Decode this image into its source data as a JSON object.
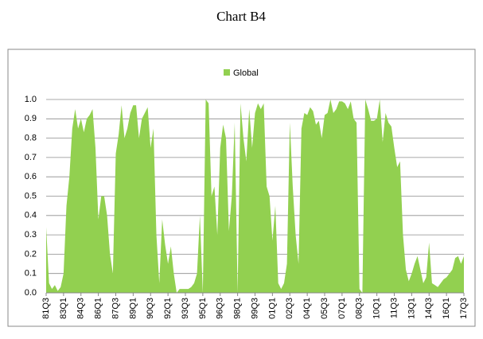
{
  "chart_data": {
    "type": "area",
    "title": "Chart B4",
    "categories": [
      "81Q3",
      null,
      null,
      null,
      null,
      null,
      "83Q1",
      null,
      null,
      null,
      null,
      null,
      "84Q3",
      null,
      null,
      null,
      null,
      null,
      "86Q1",
      null,
      null,
      null,
      null,
      null,
      "87Q3",
      null,
      null,
      null,
      null,
      null,
      "89Q1",
      null,
      null,
      null,
      null,
      null,
      "90Q3",
      null,
      null,
      null,
      null,
      null,
      "92Q1",
      null,
      null,
      null,
      null,
      null,
      "93Q3",
      null,
      null,
      null,
      null,
      null,
      "95Q1",
      null,
      null,
      null,
      null,
      null,
      "96Q3",
      null,
      null,
      null,
      null,
      null,
      "98Q1",
      null,
      null,
      null,
      null,
      null,
      "99Q3",
      null,
      null,
      null,
      null,
      null,
      "01Q1",
      null,
      null,
      null,
      null,
      null,
      "02Q3",
      null,
      null,
      null,
      null,
      null,
      "04Q1",
      null,
      null,
      null,
      null,
      null,
      "05Q3",
      null,
      null,
      null,
      null,
      null,
      "07Q1",
      null,
      null,
      null,
      null,
      null,
      "08Q3",
      null,
      null,
      null,
      null,
      null,
      "10Q1",
      null,
      null,
      null,
      null,
      null,
      "11Q3",
      null,
      null,
      null,
      null,
      null,
      "13Q1",
      null,
      null,
      null,
      null,
      null,
      "14Q3",
      null,
      null,
      null,
      null,
      null,
      "16Q1",
      null,
      null,
      null,
      null,
      null,
      "17Q3"
    ],
    "series": [
      {
        "name": "Global",
        "color": "#92d050",
        "values": [
          0.34,
          0.05,
          0.02,
          0.04,
          0.01,
          0.03,
          0.1,
          0.45,
          0.6,
          0.85,
          0.95,
          0.85,
          0.9,
          0.83,
          0.9,
          0.92,
          0.95,
          0.75,
          0.38,
          0.5,
          0.5,
          0.4,
          0.2,
          0.1,
          0.72,
          0.82,
          0.97,
          0.8,
          0.85,
          0.93,
          0.97,
          0.97,
          0.8,
          0.9,
          0.93,
          0.96,
          0.75,
          0.85,
          0.3,
          0.05,
          0.38,
          0.25,
          0.15,
          0.24,
          0.1,
          0.0,
          0.02,
          0.02,
          0.02,
          0.02,
          0.03,
          0.05,
          0.1,
          0.4,
          0.0,
          1.0,
          0.98,
          0.5,
          0.55,
          0.3,
          0.75,
          0.87,
          0.8,
          0.32,
          0.5,
          0.88,
          0.0,
          0.98,
          0.8,
          0.68,
          0.95,
          0.75,
          0.93,
          0.98,
          0.95,
          0.98,
          0.55,
          0.5,
          0.27,
          0.45,
          0.05,
          0.02,
          0.05,
          0.15,
          0.88,
          0.55,
          0.3,
          0.15,
          0.85,
          0.93,
          0.92,
          0.96,
          0.94,
          0.87,
          0.89,
          0.8,
          0.92,
          0.93,
          1.0,
          0.93,
          0.95,
          0.99,
          0.99,
          0.98,
          0.95,
          0.99,
          0.9,
          0.88,
          0.02,
          0.0,
          1.0,
          0.95,
          0.89,
          0.89,
          0.9,
          1.0,
          0.78,
          0.93,
          0.88,
          0.86,
          0.75,
          0.65,
          0.68,
          0.3,
          0.12,
          0.06,
          0.1,
          0.15,
          0.19,
          0.12,
          0.05,
          0.08,
          0.26,
          0.05,
          0.04,
          0.03,
          0.05,
          0.07,
          0.08,
          0.1,
          0.12,
          0.18,
          0.19,
          0.15,
          0.19
        ]
      }
    ],
    "ylim": [
      0,
      1
    ],
    "yticks": [
      {
        "value": 0,
        "label": "0.0"
      },
      0.1,
      0.2,
      0.3,
      0.4,
      0.5,
      0.6,
      0.7,
      0.8,
      0.9,
      {
        "value": 1,
        "label": "1.0"
      }
    ],
    "grid": true,
    "legend": "top"
  }
}
